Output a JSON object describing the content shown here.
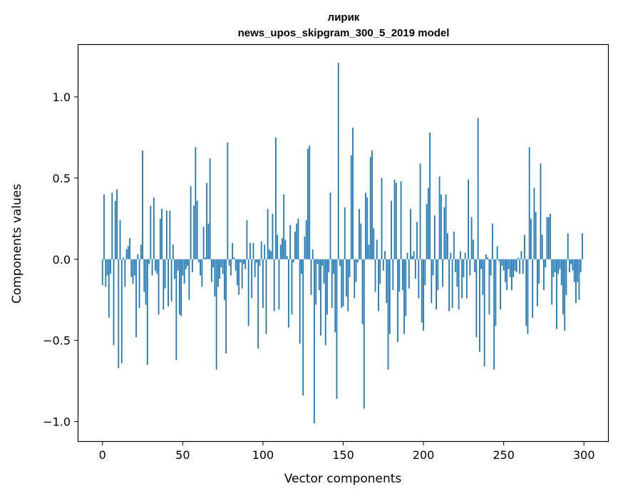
{
  "chart_data": {
    "type": "bar",
    "title_line1": "лирик",
    "title_line2": "news_upos_skipgram_300_5_2019 model",
    "xlabel": "Vector components",
    "ylabel": "Components values",
    "xlim": [
      -15,
      315
    ],
    "ylim": [
      -1.12,
      1.32
    ],
    "xticks": [
      0,
      50,
      100,
      150,
      200,
      250,
      300
    ],
    "yticks": [
      -1.0,
      -0.5,
      0.0,
      0.5,
      1.0
    ],
    "ytick_labels": [
      "−1.0",
      "−0.5",
      "0.0",
      "0.5",
      "1.0"
    ],
    "grid": false,
    "color": "#1f77b4",
    "x_start": 0,
    "values": [
      -0.16,
      0.4,
      -0.17,
      -0.1,
      -0.36,
      -0.09,
      0.41,
      -0.53,
      0.36,
      0.43,
      -0.67,
      0.24,
      -0.64,
      0.01,
      -0.17,
      0.06,
      0.08,
      0.13,
      -0.11,
      -0.15,
      -0.1,
      -0.48,
      0.03,
      -0.3,
      0.09,
      0.67,
      -0.2,
      -0.28,
      -0.65,
      -0.03,
      0.33,
      -0.1,
      0.38,
      -0.07,
      -0.09,
      -0.34,
      0.25,
      0.31,
      -0.31,
      -0.18,
      0.3,
      -0.29,
      0.3,
      -0.26,
      0.09,
      -0.12,
      -0.62,
      -0.07,
      -0.34,
      -0.35,
      -0.1,
      -0.15,
      -0.06,
      -0.04,
      -0.25,
      0.45,
      -0.08,
      0.33,
      0.69,
      0.36,
      -0.02,
      -0.1,
      -0.17,
      0.2,
      0.01,
      0.47,
      0.22,
      0.62,
      -0.14,
      -0.05,
      -0.23,
      -0.68,
      -0.17,
      -0.12,
      -0.05,
      -0.09,
      -0.25,
      -0.58,
      0.72,
      -0.04,
      -0.1,
      0.1,
      0.01,
      -0.07,
      -0.16,
      -0.22,
      -0.02,
      -0.18,
      -0.03,
      -0.06,
      0.24,
      -0.41,
      0.1,
      -0.24,
      0.1,
      -0.11,
      -0.02,
      -0.55,
      -0.04,
      0.11,
      -0.3,
      0.09,
      -0.46,
      0.31,
      0.06,
      0.05,
      0.28,
      -0.32,
      0.75,
      0.15,
      -0.31,
      0.09,
      0.13,
      0.4,
      0.12,
      0.02,
      -0.42,
      0.21,
      -0.34,
      -0.02,
      0.17,
      0.22,
      0.25,
      -0.52,
      -0.09,
      -0.84,
      0.14,
      0.24,
      0.68,
      0.7,
      -0.22,
      0.06,
      -1.01,
      -0.28,
      -0.03,
      -0.19,
      -0.47,
      -0.04,
      -0.15,
      -0.53,
      -0.34,
      -0.08,
      0.41,
      -0.3,
      -0.09,
      -0.45,
      -0.86,
      1.21,
      -0.04,
      -0.3,
      -0.29,
      0.32,
      -0.23,
      -0.32,
      -0.11,
      0.64,
      0.81,
      -0.24,
      -0.14,
      -0.02,
      0.31,
      0.22,
      -0.4,
      -0.92,
      0.41,
      0.38,
      0.09,
      0.63,
      0.67,
      0.19,
      -0.2,
      0.12,
      -0.32,
      -0.15,
      0.5,
      -0.07,
      0.05,
      -0.27,
      -0.68,
      -0.46,
      0.36,
      -0.19,
      0.49,
      0.47,
      -0.51,
      -0.2,
      0.48,
      -0.19,
      -0.46,
      -0.35,
      0.04,
      -0.18,
      0.31,
      0.02,
      0.05,
      -0.12,
      0.23,
      -0.24,
      0.59,
      -0.39,
      -0.44,
      -0.16,
      0.34,
      0.44,
      0.78,
      -0.27,
      -0.1,
      0.27,
      -0.31,
      -0.19,
      0.51,
      0.4,
      -0.17,
      0.32,
      0.4,
      0.16,
      -0.32,
      0.04,
      -0.3,
      0.17,
      -0.08,
      -0.17,
      -0.31,
      0.05,
      -0.24,
      -0.11,
      0.04,
      -0.24,
      0.49,
      -0.1,
      0.26,
      0.12,
      -0.08,
      -0.48,
      0.87,
      -0.57,
      -0.06,
      -0.22,
      -0.66,
      0.03,
      0.01,
      -0.34,
      -0.1,
      0.22,
      -0.68,
      -0.41,
      0.08,
      -0.01,
      -0.31,
      -0.04,
      -0.07,
      -0.14,
      -0.19,
      -0.06,
      -0.11,
      -0.19,
      -0.11,
      -0.07,
      -0.08,
      0.01,
      -0.09,
      0.05,
      -0.09,
      0.15,
      -0.41,
      -0.46,
      0.69,
      0.25,
      -0.36,
      0.44,
      0.29,
      -0.29,
      -0.15,
      0.59,
      0.15,
      -0.19,
      -0.05,
      0.26,
      0.26,
      0.28,
      -0.28,
      -0.11,
      -0.08,
      -0.43,
      -0.09,
      -0.06,
      -0.16,
      -0.34,
      -0.44,
      -0.22,
      0.16,
      -0.08,
      -0.03,
      -0.07,
      -0.14,
      -0.27,
      -0.14,
      -0.25,
      -0.08,
      0.16
    ]
  }
}
